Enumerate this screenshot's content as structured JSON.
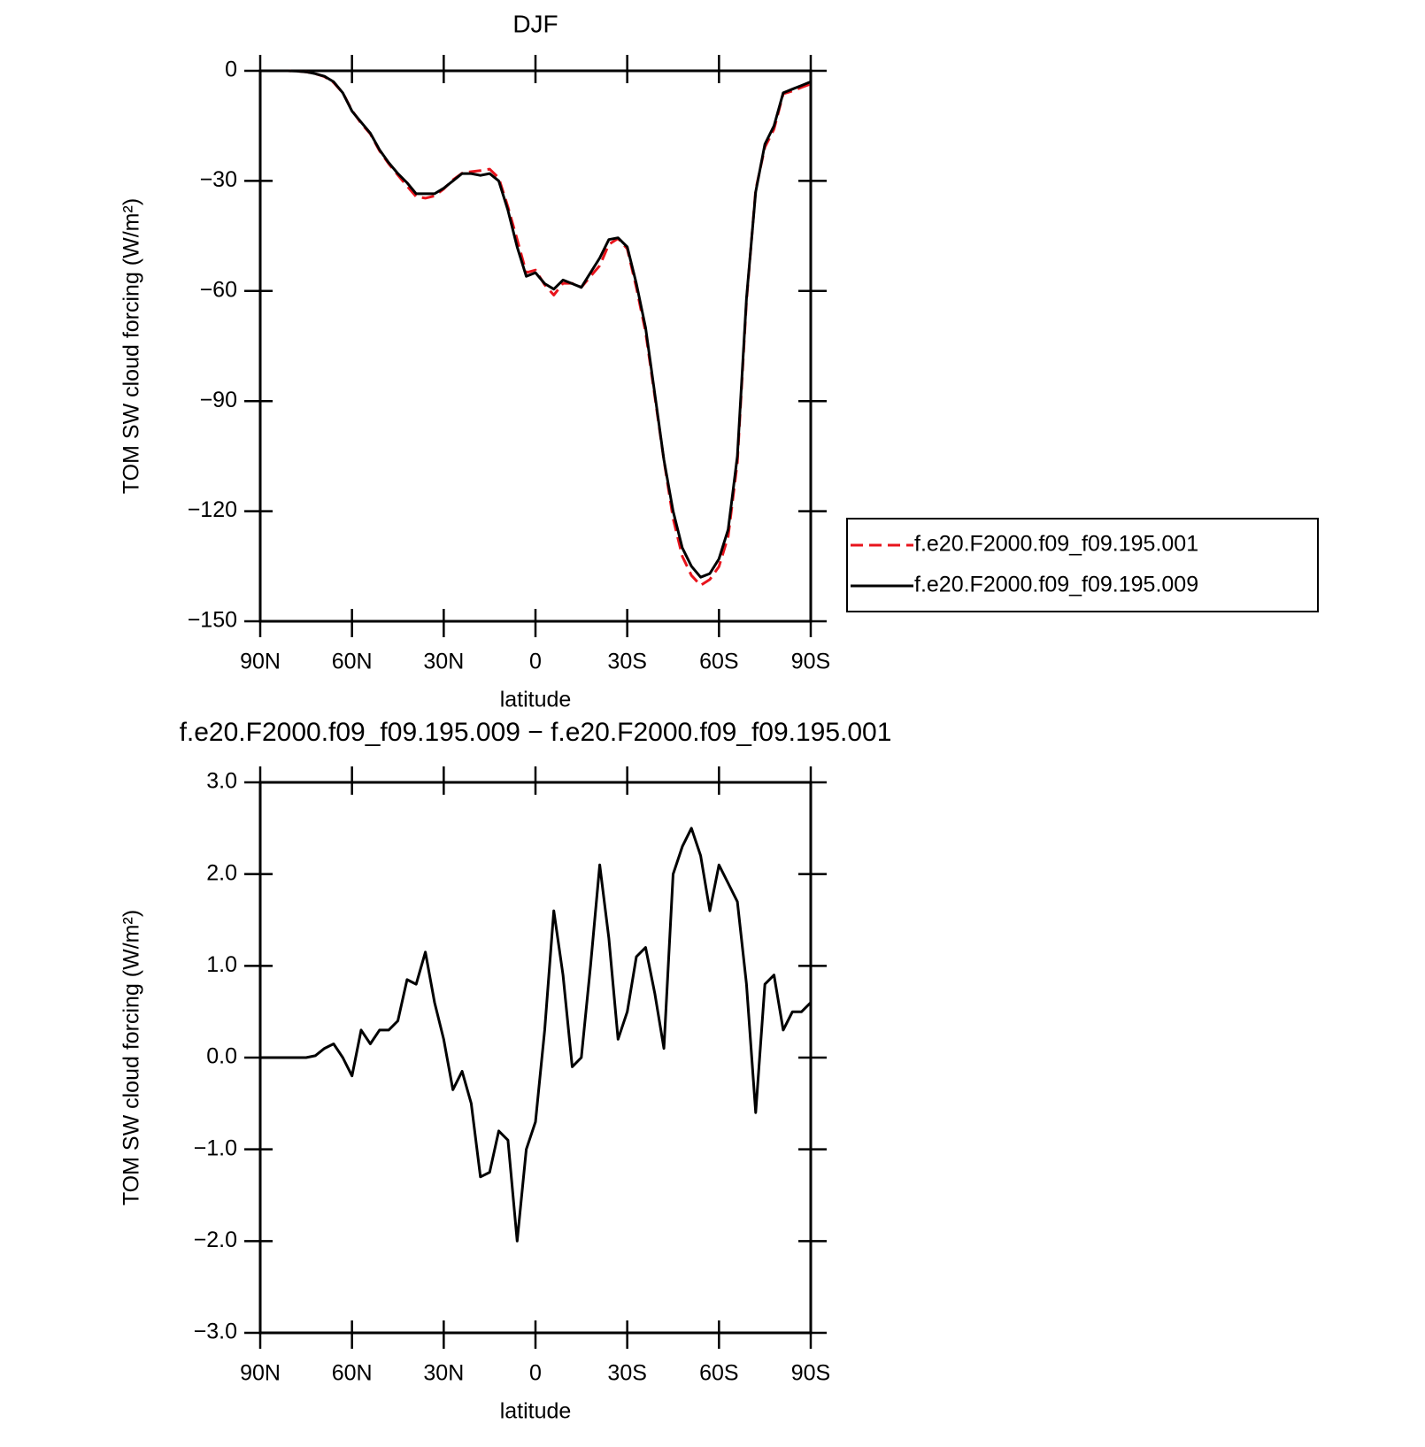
{
  "chart_data": [
    {
      "type": "line",
      "title": "DJF",
      "xlabel": "latitude",
      "ylabel": "TOM SW cloud forcing (W/m²)",
      "x": [
        90,
        87,
        84,
        81,
        78,
        75,
        72,
        69,
        66,
        63,
        60,
        57,
        54,
        51,
        48,
        45,
        42,
        39,
        36,
        33,
        30,
        27,
        24,
        21,
        18,
        15,
        12,
        9,
        6,
        3,
        0,
        -3,
        -6,
        -9,
        -12,
        -15,
        -18,
        -21,
        -24,
        -27,
        -30,
        -33,
        -36,
        -39,
        -42,
        -45,
        -48,
        -51,
        -54,
        -57,
        -60,
        -63,
        -66,
        -69,
        -72,
        -75,
        -78,
        -81,
        -84,
        -87,
        -90
      ],
      "xlim": [
        90,
        -90
      ],
      "xticks": [
        {
          "value": 90,
          "label": "90N"
        },
        {
          "value": 60,
          "label": "60N"
        },
        {
          "value": 30,
          "label": "30N"
        },
        0,
        {
          "value": -30,
          "label": "30S"
        },
        {
          "value": -60,
          "label": "60S"
        },
        {
          "value": -90,
          "label": "90S"
        }
      ],
      "ylim": [
        -150,
        0
      ],
      "yticks": [
        0,
        {
          "value": -30,
          "label": "−30"
        },
        {
          "value": -60,
          "label": "−60"
        },
        {
          "value": -90,
          "label": "−90"
        },
        {
          "value": -120,
          "label": "−120"
        },
        {
          "value": -150,
          "label": "−150"
        }
      ],
      "legend": "right",
      "series": [
        {
          "name": "f.e20.F2000.f09_f09.195.001",
          "color": "#e8141c",
          "dashed": true,
          "values": [
            0,
            0,
            0,
            0,
            -0.1,
            -0.3,
            -0.8,
            -1.6,
            -3.2,
            -6,
            -10.8,
            -14.3,
            -17.2,
            -21.8,
            -25.3,
            -28.4,
            -31.4,
            -34.3,
            -34.7,
            -34.1,
            -32.2,
            -29.7,
            -27.9,
            -27.5,
            -27.2,
            -26.8,
            -29.2,
            -37.1,
            -46,
            -55,
            -54.3,
            -58.3,
            -61.1,
            -57.9,
            -57.9,
            -59,
            -56,
            -53.1,
            -47.3,
            -45.7,
            -48.5,
            -59.1,
            -71.2,
            -88.7,
            -106.1,
            -122,
            -132.3,
            -137.5,
            -140.2,
            -138.6,
            -135.1,
            -126.9,
            -106.7,
            -62.8,
            -32.4,
            -20.8,
            -15.9,
            -6.3,
            -5.5,
            -4.5,
            -3.6
          ]
        },
        {
          "name": "f.e20.F2000.f09_f09.195.009",
          "color": "#000000",
          "dashed": false,
          "values": [
            0,
            0,
            0,
            0,
            -0.1,
            -0.3,
            -0.8,
            -1.5,
            -3,
            -6,
            -11,
            -14,
            -17,
            -21.5,
            -25,
            -28,
            -30.5,
            -33.5,
            -33.5,
            -33.5,
            -32,
            -30,
            -28,
            -28,
            -28.5,
            -28,
            -30,
            -38,
            -48,
            -56,
            -55,
            -58,
            -59.5,
            -57,
            -58,
            -59,
            -55,
            -51,
            -46,
            -45.5,
            -48,
            -58,
            -70,
            -88,
            -106,
            -120,
            -130,
            -135,
            -138,
            -137,
            -133,
            -125,
            -105,
            -62,
            -33,
            -20,
            -15,
            -6,
            -5,
            -4,
            -3
          ]
        }
      ]
    },
    {
      "type": "line",
      "title": "f.e20.F2000.f09_f09.195.009 − f.e20.F2000.f09_f09.195.001",
      "xlabel": "latitude",
      "ylabel": "TOM SW cloud forcing (W/m²)",
      "x": [
        90,
        87,
        84,
        81,
        78,
        75,
        72,
        69,
        66,
        63,
        60,
        57,
        54,
        51,
        48,
        45,
        42,
        39,
        36,
        33,
        30,
        27,
        24,
        21,
        18,
        15,
        12,
        9,
        6,
        3,
        0,
        -3,
        -6,
        -9,
        -12,
        -15,
        -18,
        -21,
        -24,
        -27,
        -30,
        -33,
        -36,
        -39,
        -42,
        -45,
        -48,
        -51,
        -54,
        -57,
        -60,
        -63,
        -66,
        -69,
        -72,
        -75,
        -78,
        -81,
        -84,
        -87,
        -90
      ],
      "xlim": [
        90,
        -90
      ],
      "xticks": [
        {
          "value": 90,
          "label": "90N"
        },
        {
          "value": 60,
          "label": "60N"
        },
        {
          "value": 30,
          "label": "30N"
        },
        0,
        {
          "value": -30,
          "label": "30S"
        },
        {
          "value": -60,
          "label": "60S"
        },
        {
          "value": -90,
          "label": "90S"
        }
      ],
      "ylim": [
        -3,
        3
      ],
      "yticks": [
        {
          "value": 3,
          "label": "3.0"
        },
        {
          "value": 2,
          "label": "2.0"
        },
        {
          "value": 1,
          "label": "1.0"
        },
        {
          "value": 0,
          "label": "0.0"
        },
        {
          "value": -1,
          "label": "−1.0"
        },
        {
          "value": -2,
          "label": "−2.0"
        },
        {
          "value": -3,
          "label": "−3.0"
        }
      ],
      "color": "#000000",
      "values": [
        0,
        0,
        0,
        0,
        0,
        0,
        0.02,
        0.1,
        0.15,
        0,
        -0.2,
        0.3,
        0.15,
        0.3,
        0.3,
        0.4,
        0.85,
        0.8,
        1.15,
        0.6,
        0.2,
        -0.35,
        -0.15,
        -0.5,
        -1.3,
        -1.25,
        -0.8,
        -0.9,
        -2.0,
        -1.0,
        -0.7,
        0.3,
        1.6,
        0.9,
        -0.1,
        0,
        1,
        2.1,
        1.3,
        0.2,
        0.5,
        1.1,
        1.2,
        0.7,
        0.1,
        2,
        2.3,
        2.5,
        2.2,
        1.6,
        2.1,
        1.9,
        1.7,
        0.8,
        -0.6,
        0.8,
        0.9,
        0.3,
        0.5,
        0.5,
        0.6
      ]
    }
  ]
}
